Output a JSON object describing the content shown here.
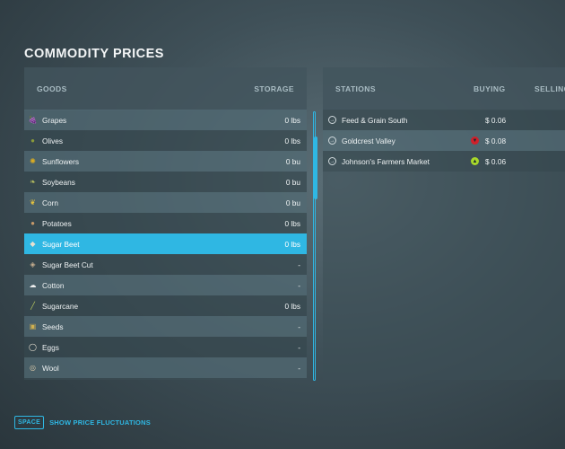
{
  "title": "COMMODITY PRICES",
  "goods": {
    "header_goods": "GOODS",
    "header_storage": "STORAGE",
    "items": [
      {
        "name": "Grapes",
        "storage": "0 lbs",
        "icon": "grapes-icon"
      },
      {
        "name": "Olives",
        "storage": "0 lbs",
        "icon": "olives-icon"
      },
      {
        "name": "Sunflowers",
        "storage": "0 bu",
        "icon": "sunflower-icon"
      },
      {
        "name": "Soybeans",
        "storage": "0 bu",
        "icon": "soybeans-icon"
      },
      {
        "name": "Corn",
        "storage": "0 bu",
        "icon": "corn-icon"
      },
      {
        "name": "Potatoes",
        "storage": "0 lbs",
        "icon": "potato-icon"
      },
      {
        "name": "Sugar Beet",
        "storage": "0 lbs",
        "icon": "sugar-beet-icon",
        "selected": true
      },
      {
        "name": "Sugar Beet Cut",
        "storage": "-",
        "icon": "sugar-beet-cut-icon"
      },
      {
        "name": "Cotton",
        "storage": "-",
        "icon": "cotton-icon"
      },
      {
        "name": "Sugarcane",
        "storage": "0 lbs",
        "icon": "sugarcane-icon"
      },
      {
        "name": "Seeds",
        "storage": "-",
        "icon": "seeds-icon"
      },
      {
        "name": "Eggs",
        "storage": "-",
        "icon": "eggs-icon"
      },
      {
        "name": "Wool",
        "storage": "-",
        "icon": "wool-icon"
      }
    ]
  },
  "stations": {
    "header_stations": "STATIONS",
    "header_buying": "BUYING",
    "header_selling": "SELLING",
    "items": [
      {
        "name": "Feed & Grain South",
        "price": "$ 0.06",
        "trend": ""
      },
      {
        "name": "Goldcrest Valley",
        "price": "$ 0.08",
        "trend": "down"
      },
      {
        "name": "Johnson's Farmers Market",
        "price": "$ 0.06",
        "trend": "up"
      }
    ]
  },
  "footer": {
    "key": "SPACE",
    "label": "SHOW PRICE FLUCTUATIONS"
  },
  "colors": {
    "accent": "#2fb7e3",
    "trend_down": "#d0202a",
    "trend_up": "#a8d82a"
  }
}
